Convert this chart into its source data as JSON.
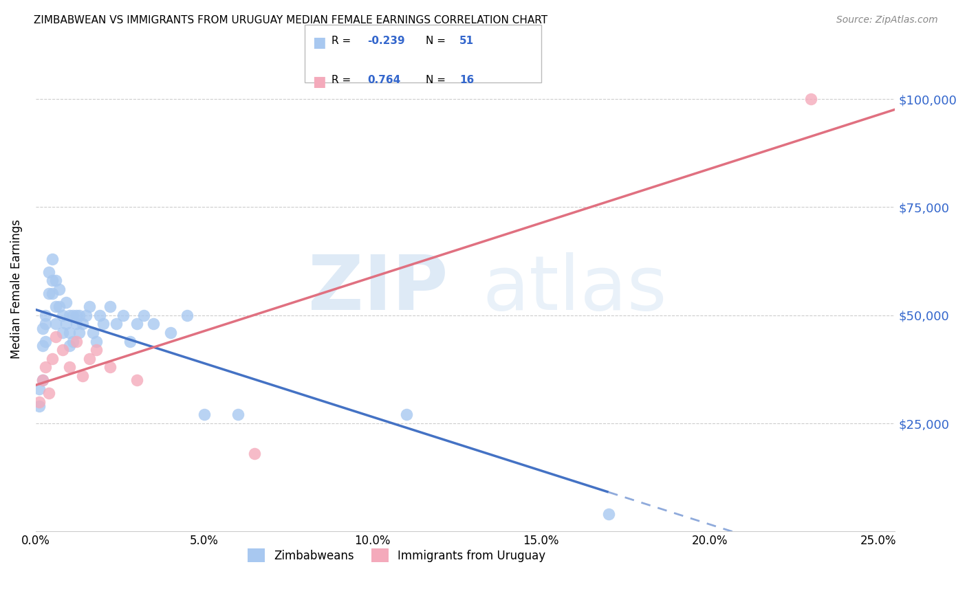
{
  "title": "ZIMBABWEAN VS IMMIGRANTS FROM URUGUAY MEDIAN FEMALE EARNINGS CORRELATION CHART",
  "source": "Source: ZipAtlas.com",
  "xlabel_ticks": [
    "0.0%",
    "5.0%",
    "10.0%",
    "15.0%",
    "20.0%",
    "25.0%"
  ],
  "xlabel_vals": [
    0.0,
    0.05,
    0.1,
    0.15,
    0.2,
    0.25
  ],
  "ylabel": "Median Female Earnings",
  "ylabel_ticks": [
    "$25,000",
    "$50,000",
    "$75,000",
    "$100,000"
  ],
  "ylabel_vals": [
    25000,
    50000,
    75000,
    100000
  ],
  "ylim": [
    0,
    112000
  ],
  "xlim": [
    0.0,
    0.255
  ],
  "legend_label1": "Zimbabweans",
  "legend_label2": "Immigrants from Uruguay",
  "r1": "-0.239",
  "n1": "51",
  "r2": "0.764",
  "n2": "16",
  "blue_color": "#A8C8F0",
  "pink_color": "#F4AABB",
  "blue_line_color": "#4472C4",
  "pink_line_color": "#E07080",
  "blue_x": [
    0.001,
    0.001,
    0.002,
    0.002,
    0.002,
    0.003,
    0.003,
    0.003,
    0.004,
    0.004,
    0.005,
    0.005,
    0.005,
    0.006,
    0.006,
    0.006,
    0.007,
    0.007,
    0.008,
    0.008,
    0.009,
    0.009,
    0.01,
    0.01,
    0.01,
    0.011,
    0.011,
    0.012,
    0.012,
    0.013,
    0.013,
    0.014,
    0.015,
    0.016,
    0.017,
    0.018,
    0.019,
    0.02,
    0.022,
    0.024,
    0.026,
    0.028,
    0.03,
    0.032,
    0.035,
    0.04,
    0.045,
    0.05,
    0.06,
    0.11,
    0.17
  ],
  "blue_y": [
    33000,
    29000,
    43000,
    47000,
    35000,
    44000,
    48000,
    50000,
    55000,
    60000,
    58000,
    63000,
    55000,
    58000,
    52000,
    48000,
    52000,
    56000,
    50000,
    46000,
    53000,
    48000,
    50000,
    46000,
    43000,
    50000,
    44000,
    48000,
    50000,
    46000,
    50000,
    48000,
    50000,
    52000,
    46000,
    44000,
    50000,
    48000,
    52000,
    48000,
    50000,
    44000,
    48000,
    50000,
    48000,
    46000,
    50000,
    27000,
    27000,
    27000,
    4000
  ],
  "pink_x": [
    0.001,
    0.002,
    0.003,
    0.004,
    0.005,
    0.006,
    0.008,
    0.01,
    0.012,
    0.014,
    0.016,
    0.018,
    0.022,
    0.03,
    0.065,
    0.23
  ],
  "pink_y": [
    30000,
    35000,
    38000,
    32000,
    40000,
    45000,
    42000,
    38000,
    44000,
    36000,
    40000,
    42000,
    38000,
    35000,
    18000,
    100000
  ]
}
